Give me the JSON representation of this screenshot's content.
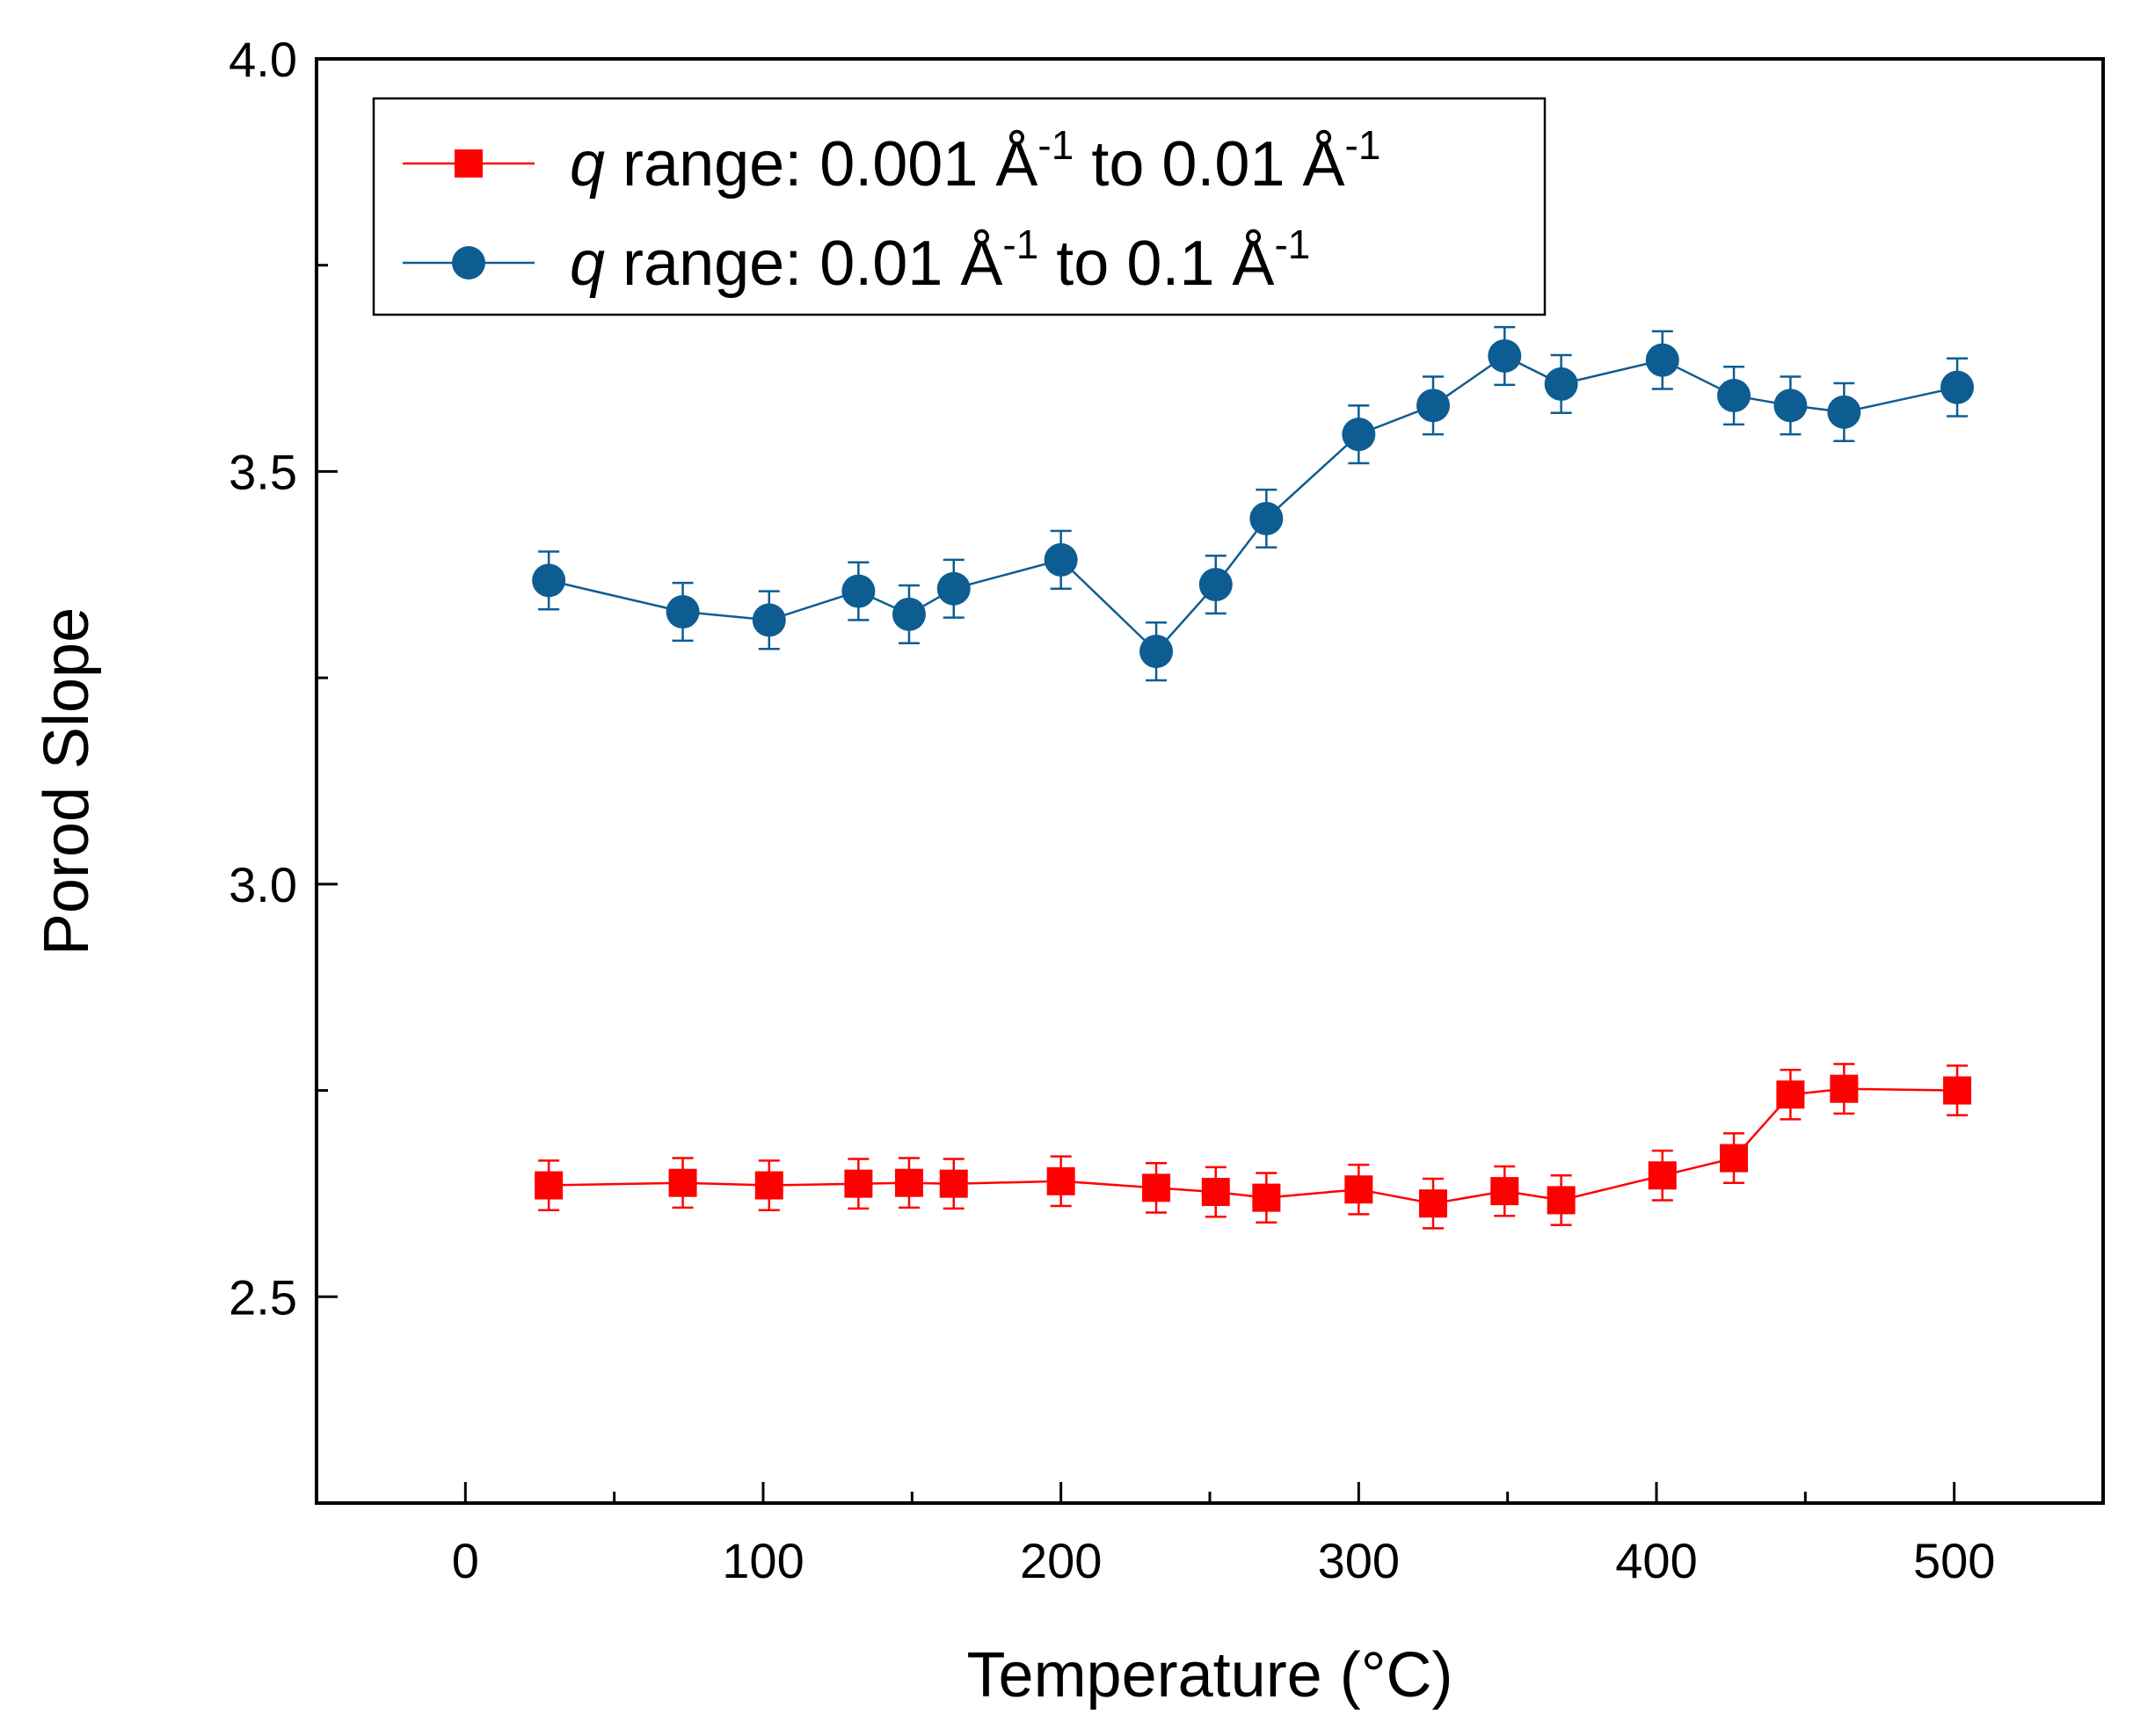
{
  "chart_data": {
    "type": "line",
    "title": "",
    "xlabel": "Temperature (°C)",
    "ylabel": "Porod Slope",
    "xlim": [
      -50,
      550
    ],
    "ylim": [
      2.25,
      4.0
    ],
    "xticks": [
      0,
      100,
      200,
      300,
      400,
      500
    ],
    "xtick_labels": [
      "0",
      "100",
      "200",
      "300",
      "400",
      "500"
    ],
    "yticks": [
      2.5,
      3.0,
      3.5,
      4.0
    ],
    "ytick_labels": [
      "2.5",
      "3.0",
      "3.5",
      "4.0"
    ],
    "grid": false,
    "legend_position": "top-left",
    "series": [
      {
        "name": "q range: 0.001 Å-1 to 0.01 Å-1",
        "legend": {
          "italic": "q",
          "parts": [
            " range: 0.001 Å",
            "-1",
            " to 0.01 Å",
            "-1"
          ]
        },
        "color": "#ff0000",
        "marker": "square",
        "x": [
          28,
          73,
          102,
          132,
          149,
          164,
          200,
          232,
          252,
          269,
          300,
          325,
          349,
          368,
          402,
          426,
          445,
          463,
          501
        ],
        "y": [
          2.635,
          2.638,
          2.635,
          2.637,
          2.638,
          2.637,
          2.64,
          2.632,
          2.627,
          2.62,
          2.63,
          2.613,
          2.628,
          2.617,
          2.647,
          2.668,
          2.745,
          2.752,
          2.75
        ],
        "error": 0.03
      },
      {
        "name": "q range: 0.01 Å-1 to 0.1 Å-1",
        "legend": {
          "italic": "q",
          "parts": [
            " range: 0.01 Å",
            "-1",
            " to 0.1 Å",
            "-1"
          ]
        },
        "color": "#0d5d92",
        "marker": "circle",
        "x": [
          28,
          73,
          102,
          132,
          149,
          164,
          200,
          232,
          252,
          269,
          300,
          325,
          349,
          368,
          402,
          426,
          445,
          463,
          501
        ],
        "y": [
          3.368,
          3.33,
          3.32,
          3.355,
          3.327,
          3.358,
          3.393,
          3.282,
          3.363,
          3.443,
          3.545,
          3.58,
          3.64,
          3.606,
          3.635,
          3.592,
          3.58,
          3.572,
          3.602
        ],
        "error": 0.035
      }
    ]
  }
}
